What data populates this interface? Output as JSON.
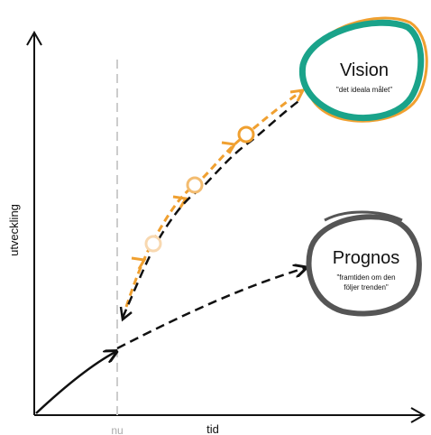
{
  "axes": {
    "y_label": "utveckling",
    "x_label": "tid",
    "now_label": "nu"
  },
  "vision": {
    "title": "Vision",
    "subtitle": "\"det ideala målet\""
  },
  "prognos": {
    "title": "Prognos",
    "subtitle_line1": "\"framtiden om den",
    "subtitle_line2": "följer trenden\""
  },
  "colors": {
    "axis": "#111111",
    "now_line": "#cccccc",
    "trend": "#111111",
    "vision_fill": "#ffffff",
    "vision_outline_teal": "#1aa38a",
    "vision_outline_orange": "#f0a030",
    "orange_path": "#f0a030",
    "prognos_outline": "#555555"
  }
}
